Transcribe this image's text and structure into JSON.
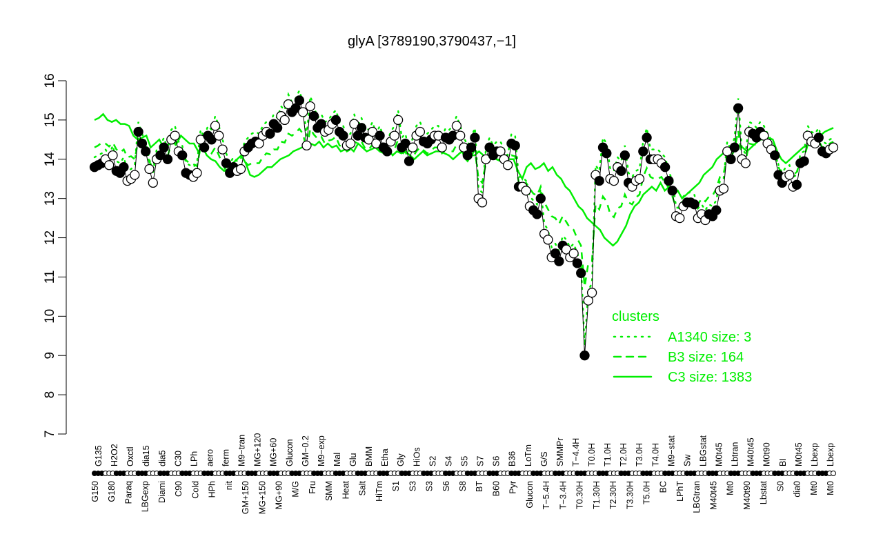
{
  "chart_data": {
    "type": "line",
    "title": "glyA [3789190,3790437,−1]",
    "xlabel": "",
    "ylabel": "",
    "ylim": [
      7,
      16
    ],
    "yticks": [
      7,
      8,
      9,
      10,
      11,
      12,
      13,
      14,
      15,
      16
    ],
    "grid": false,
    "legend": {
      "title": "clusters",
      "position": "bottom-right inside",
      "color": "#00ee00",
      "entries": [
        {
          "label": "A1340 size: 3",
          "style": "dotted"
        },
        {
          "label": "B3 size: 164",
          "style": "dashed"
        },
        {
          "label": "C3 size: 1383",
          "style": "solid"
        }
      ]
    },
    "x_tick_labels_top": [
      "G135",
      "H2O2",
      "Oxctl",
      "dia15",
      "dia5",
      "C30",
      "LPh",
      "aero",
      "ferm",
      "M9−tran",
      "MG+120",
      "MG+60",
      "Glucon",
      "GM−0.2",
      "M9−exp",
      "Mal",
      "Glu",
      "BMM",
      "Etha",
      "Gly",
      "HiOs",
      "S2",
      "S4",
      "S5",
      "S7",
      "S6",
      "B36",
      "LoTm",
      "G/S",
      "SMMPr",
      "T−4.4H",
      "T0.0H",
      "T1.0H",
      "T2.0H",
      "T3.0H",
      "T4.0H",
      "M9−stat",
      "Sw",
      "LBGstat",
      "M0t45",
      "Lbtran",
      "M40t45",
      "M0t90",
      "BI",
      "M0t45",
      "Lbexp",
      "Lbexp"
    ],
    "x_tick_labels_bottom": [
      "G150",
      "G180",
      "Paraq",
      "LBGexp",
      "Diami",
      "C90",
      "Cold",
      "HPh",
      "nit",
      "GM+150",
      "MG+150",
      "MG+90",
      "M/G",
      "Fru",
      "SMM",
      "Heat",
      "Salt",
      "HiTm",
      "S1",
      "S3",
      "S3",
      "S6",
      "S8",
      "BT",
      "B60",
      "Pyr",
      "Glucon",
      "T−5.4H",
      "T−3.4H",
      "T0.30H",
      "T1.30H",
      "T2.30H",
      "T3.30H",
      "T5.0H",
      "BC",
      "LPhT",
      "LBGtran",
      "M40t45",
      "Mt0",
      "M40t90",
      "Lbstat",
      "S0",
      "dia0",
      "Mt0",
      "Mt0"
    ],
    "series": [
      {
        "name": "expression",
        "color": "#000000",
        "marker": "circle (filled/open alternating by condition)",
        "values": [
          13.8,
          13.85,
          13.9,
          14.0,
          13.85,
          14.1,
          13.7,
          13.65,
          13.8,
          13.45,
          13.5,
          13.6,
          14.7,
          14.4,
          14.2,
          13.75,
          13.4,
          14.0,
          14.1,
          14.3,
          14.0,
          14.5,
          14.6,
          14.2,
          14.1,
          13.65,
          13.6,
          13.55,
          13.65,
          14.5,
          14.3,
          14.6,
          14.5,
          14.85,
          14.6,
          14.25,
          13.9,
          13.65,
          13.8,
          13.7,
          13.75,
          14.2,
          14.3,
          14.4,
          14.45,
          14.4,
          14.6,
          14.7,
          14.65,
          14.9,
          14.8,
          15.1,
          15.0,
          15.4,
          15.2,
          15.3,
          15.5,
          15.2,
          14.35,
          15.35,
          15.1,
          14.8,
          14.9,
          14.7,
          14.75,
          14.9,
          15.0,
          14.7,
          14.6,
          14.35,
          14.4,
          14.9,
          14.6,
          14.8,
          14.55,
          14.5,
          14.7,
          14.4,
          14.6,
          14.3,
          14.2,
          14.45,
          14.6,
          15.0,
          14.3,
          14.4,
          13.95,
          14.3,
          14.6,
          14.7,
          14.45,
          14.4,
          14.5,
          14.6,
          14.6,
          14.3,
          14.55,
          14.5,
          14.6,
          14.85,
          14.6,
          14.3,
          14.1,
          14.3,
          14.55,
          13.0,
          12.9,
          14.0,
          14.3,
          14.1,
          14.2,
          14.2,
          14.0,
          13.85,
          14.4,
          14.35,
          13.3,
          13.3,
          13.2,
          12.8,
          12.7,
          12.6,
          13.0,
          12.1,
          11.95,
          11.5,
          11.6,
          11.4,
          11.8,
          11.7,
          11.5,
          11.6,
          11.35,
          11.1,
          9.0,
          10.4,
          10.6,
          13.6,
          13.45,
          14.3,
          14.15,
          13.5,
          13.45,
          13.8,
          13.7,
          14.1,
          13.4,
          13.3,
          13.45,
          13.5,
          14.2,
          14.55,
          14.0,
          14.0,
          14.0,
          13.9,
          13.8,
          13.45,
          13.2,
          12.55,
          12.5,
          12.8,
          12.9,
          12.9,
          12.85,
          12.5,
          12.6,
          12.45,
          12.6,
          12.55,
          12.7,
          13.2,
          13.25,
          14.2,
          14.0,
          14.3,
          15.3,
          14.0,
          13.9,
          14.7,
          14.65,
          14.55,
          14.7,
          14.6,
          14.4,
          14.25,
          14.1,
          13.6,
          13.4,
          13.55,
          13.6,
          13.3,
          13.35,
          13.9,
          13.95,
          14.6,
          14.45,
          14.4,
          14.55,
          14.2,
          14.15,
          14.25,
          14.3
        ]
      },
      {
        "name": "C3 size: 1383",
        "color": "#00ee00",
        "style": "solid",
        "values": [
          15.0,
          15.05,
          15.15,
          15.0,
          14.95,
          15.0,
          14.9,
          14.9,
          14.85,
          14.6,
          14.5,
          14.55,
          14.6,
          14.3,
          14.4,
          14.5,
          14.3,
          14.35,
          14.5,
          14.4,
          14.6,
          14.5,
          14.4,
          14.4,
          14.2,
          14.3,
          14.1,
          14.0,
          13.95,
          13.8,
          13.7,
          13.75,
          13.9,
          14.0,
          14.1,
          13.9,
          13.6,
          13.55,
          13.6,
          13.7,
          13.8,
          13.8,
          13.9,
          14.0,
          14.05,
          14.1,
          14.2,
          14.25,
          14.3,
          14.35,
          14.4,
          14.35,
          14.45,
          14.3,
          14.4,
          14.3,
          14.35,
          14.2,
          14.25,
          14.3,
          14.2,
          14.4,
          14.3,
          14.2,
          14.25,
          14.3,
          14.2,
          14.15,
          14.25,
          14.1,
          14.2,
          14.15,
          14.2,
          14.1,
          14.0,
          14.1,
          14.2,
          14.1,
          14.15,
          14.2,
          14.2,
          14.15,
          14.1,
          14.0,
          14.1,
          14.2,
          14.0,
          14.1,
          14.1,
          14.2,
          14.1,
          14.0,
          14.1,
          14.0,
          13.95,
          14.1,
          14.0,
          14.0,
          13.7,
          13.5,
          13.8,
          13.9,
          13.75,
          13.8,
          13.9,
          13.7,
          13.8,
          13.6,
          13.5,
          13.3,
          13.2,
          13.0,
          12.8,
          12.7,
          12.5,
          12.4,
          12.3,
          12.2,
          12.0,
          11.9,
          11.8,
          11.9,
          12.1,
          12.3,
          12.6,
          12.8,
          12.9,
          13.1,
          13.2,
          13.3,
          13.2,
          13.4,
          13.2,
          13.3,
          13.1,
          13.2,
          13.0,
          13.1,
          13.2,
          13.3,
          13.4,
          13.6,
          13.7,
          13.8,
          14.0,
          14.1,
          14.2,
          14.3,
          14.4,
          14.35,
          14.3,
          14.2,
          14.3,
          14.4,
          14.5,
          14.6,
          14.55,
          14.5,
          14.2,
          14.0,
          13.9,
          14.0,
          14.1,
          14.2,
          14.3,
          14.35,
          14.4,
          14.5,
          14.6,
          14.7,
          14.75,
          14.8
        ]
      }
    ]
  }
}
